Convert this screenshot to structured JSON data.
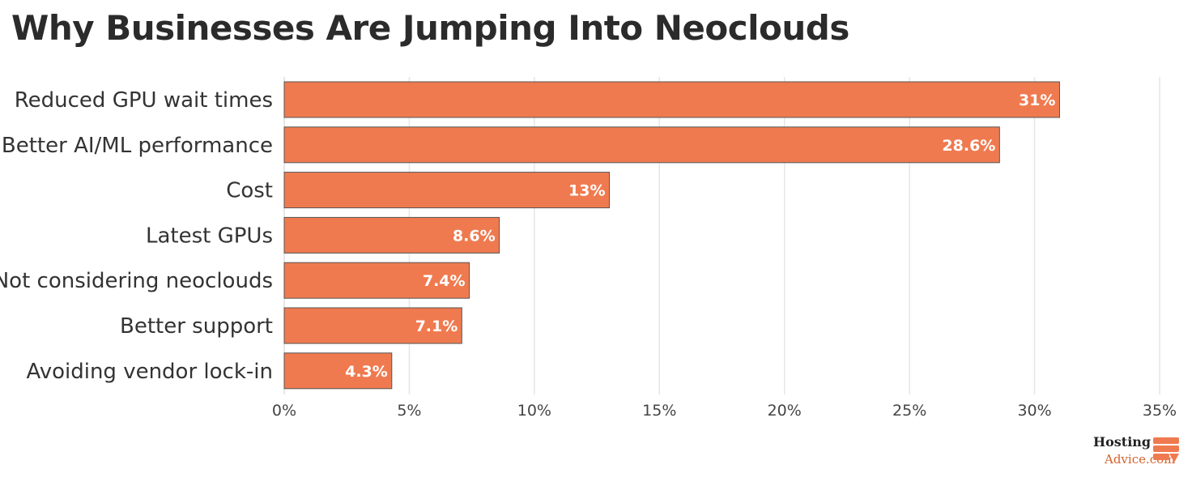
{
  "title": "Why Businesses Are Jumping Into Neoclouds",
  "logo": {
    "line1": "Hosting",
    "line2": "Advice.com"
  },
  "colors": {
    "bar": "#f07a4f",
    "bar_stroke": "#555555",
    "grid": "#e6e6e6",
    "text": "#333333"
  },
  "chart_data": {
    "type": "bar",
    "orientation": "horizontal",
    "categories": [
      "Reduced GPU wait times",
      "Better AI/ML performance",
      "Cost",
      "Latest GPUs",
      "Not considering neoclouds",
      "Better support",
      "Avoiding vendor lock-in"
    ],
    "values": [
      31,
      28.6,
      13,
      8.6,
      7.4,
      7.1,
      4.3
    ],
    "data_labels": [
      "31%",
      "28.6%",
      "13%",
      "8.6%",
      "7.4%",
      "7.1%",
      "4.3%"
    ],
    "x_ticks": [
      0,
      5,
      10,
      15,
      20,
      25,
      30,
      35
    ],
    "x_tick_labels": [
      "0%",
      "5%",
      "10%",
      "15%",
      "20%",
      "25%",
      "30%",
      "35%"
    ],
    "xlim": [
      0,
      35
    ],
    "grid": true,
    "title": "Why Businesses Are Jumping Into Neoclouds",
    "xlabel": "",
    "ylabel": ""
  }
}
